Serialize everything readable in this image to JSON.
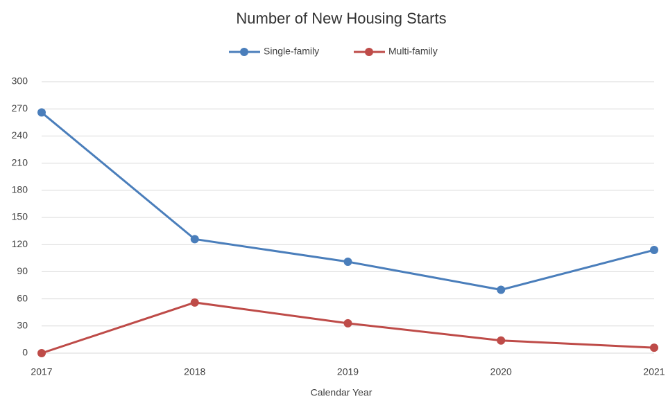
{
  "chart_data": {
    "type": "line",
    "title": "Number of New Housing Starts",
    "x_label": "Calendar Year",
    "categories": [
      "2017",
      "2018",
      "2019",
      "2020",
      "2021"
    ],
    "series": [
      {
        "name": "Single-family",
        "color": "#4a7ebb",
        "values": [
          266,
          126,
          101,
          70,
          114
        ]
      },
      {
        "name": "Multi-family",
        "color": "#be4b48",
        "values": [
          0,
          56,
          33,
          14,
          6
        ]
      }
    ],
    "ylim": [
      0,
      300
    ],
    "yticks": [
      0,
      30,
      60,
      90,
      120,
      150,
      180,
      210,
      240,
      270,
      300
    ],
    "grid": true,
    "legend": "top"
  }
}
